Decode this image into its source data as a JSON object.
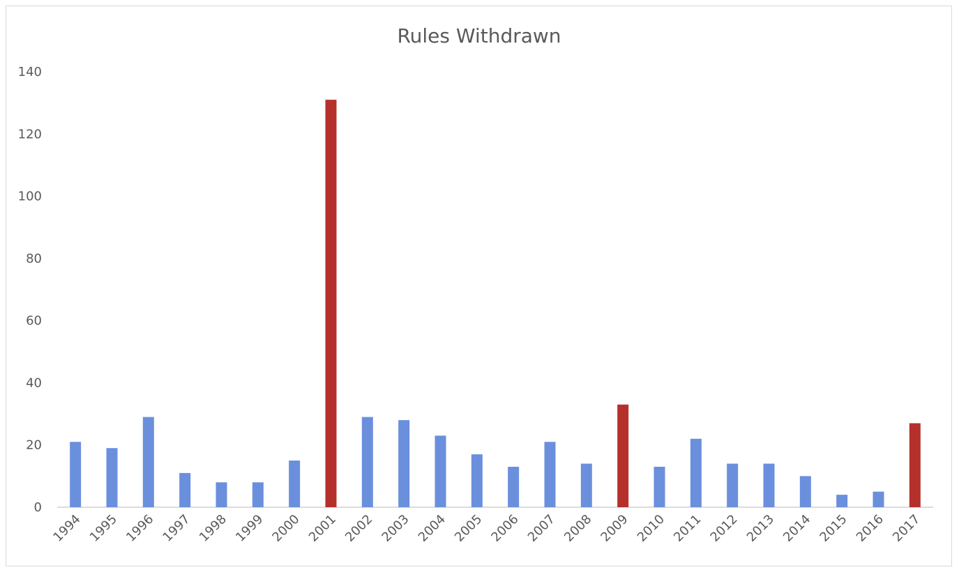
{
  "chart_data": {
    "type": "bar",
    "title": "Rules Withdrawn",
    "xlabel": "",
    "ylabel": "",
    "ylim": [
      0,
      140
    ],
    "yticks": [
      0,
      20,
      40,
      60,
      80,
      100,
      120,
      140
    ],
    "grid": false,
    "legend": "none",
    "categories": [
      "1994",
      "1995",
      "1996",
      "1997",
      "1998",
      "1999",
      "2000",
      "2001",
      "2002",
      "2003",
      "2004",
      "2005",
      "2006",
      "2007",
      "2008",
      "2009",
      "2010",
      "2011",
      "2012",
      "2013",
      "2014",
      "2015",
      "2016",
      "2017"
    ],
    "values": [
      21,
      19,
      29,
      11,
      8,
      8,
      15,
      131,
      29,
      28,
      23,
      17,
      13,
      21,
      14,
      33,
      13,
      22,
      14,
      14,
      10,
      4,
      5,
      27
    ],
    "highlighted": [
      "2001",
      "2009",
      "2017"
    ],
    "colors": {
      "default": "#6a8fdc",
      "highlight": "#b5302a"
    }
  }
}
